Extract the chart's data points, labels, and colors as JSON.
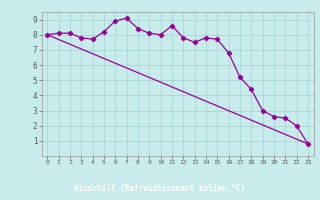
{
  "title": "",
  "xlabel": "Windchill (Refroidissement éolien,°C)",
  "ylabel": "",
  "background_color": "#c8ecec",
  "xlabel_bg_color": "#7b68a0",
  "line_color": "#990099",
  "grid_color": "#a0d0d0",
  "tick_color": "#555555",
  "xlim": [
    -0.5,
    23.5
  ],
  "ylim": [
    0,
    9.5
  ],
  "xticks": [
    0,
    1,
    2,
    3,
    4,
    5,
    6,
    7,
    8,
    9,
    10,
    11,
    12,
    13,
    14,
    15,
    16,
    17,
    18,
    19,
    20,
    21,
    22,
    23
  ],
  "yticks": [
    1,
    2,
    3,
    4,
    5,
    6,
    7,
    8,
    9
  ],
  "series1_x": [
    0,
    1,
    2,
    3,
    4,
    5,
    6,
    7,
    8,
    9,
    10,
    11,
    12,
    13,
    14,
    15,
    16,
    17,
    18,
    19,
    20,
    21,
    22,
    23
  ],
  "series1_y": [
    8.0,
    8.1,
    8.1,
    7.8,
    7.7,
    8.2,
    8.9,
    9.1,
    8.4,
    8.1,
    8.0,
    8.6,
    7.8,
    7.5,
    7.8,
    7.7,
    6.8,
    5.2,
    4.4,
    3.0,
    2.6,
    2.5,
    2.0,
    0.8
  ],
  "series2_x": [
    0,
    23
  ],
  "series2_y": [
    8.0,
    0.8
  ],
  "marker": "D",
  "markersize": 2.2,
  "linewidth": 0.9
}
